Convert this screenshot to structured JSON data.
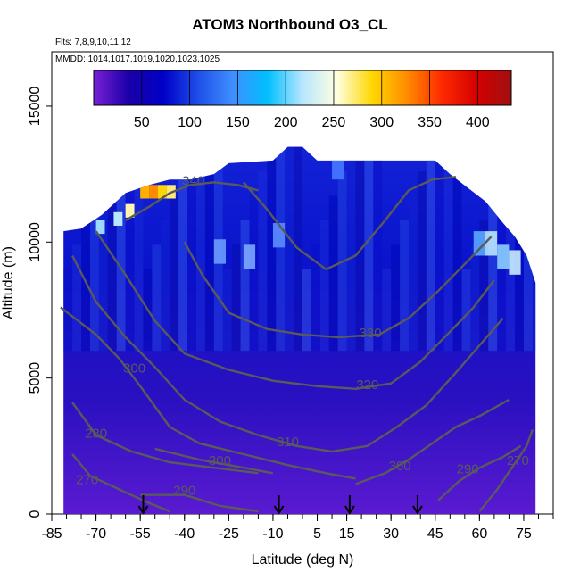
{
  "chart_data": {
    "type": "heatmap",
    "title": "ATOM3 Northbound O3_CL",
    "flights_label": "Flts: 7,8,9,10,11,12",
    "dates_label": "MMDD: 1014,1017,1019,1020,1023,1025",
    "xlabel": "Latitude (deg N)",
    "ylabel": "Altitude (m)",
    "xlim": [
      -85,
      85
    ],
    "ylim": [
      0,
      17000
    ],
    "x_ticks": [
      -85,
      -70,
      -55,
      -40,
      -25,
      -10,
      5,
      15,
      30,
      45,
      60,
      75
    ],
    "x_minor_step": 5,
    "y_ticks": [
      0,
      5000,
      10000,
      15000
    ],
    "colorbar": {
      "min": 0,
      "max": 435,
      "ticks": [
        50,
        100,
        150,
        200,
        250,
        300,
        350,
        400
      ],
      "colors": [
        "#7a1fd6",
        "#1a00a8",
        "#0000c8",
        "#1f4fe8",
        "#3f8fff",
        "#00bfff",
        "#b8e6ff",
        "#ffffe0",
        "#ffd700",
        "#ff8c00",
        "#ff2a00",
        "#d40000",
        "#a01010"
      ]
    },
    "profile_markers_lat": [
      -54,
      -8,
      16,
      39
    ],
    "contours": [
      {
        "label": "270",
        "label_at": [
          -73,
          1100
        ],
        "points": [
          [
            -78,
            2200
          ],
          [
            -72,
            1400
          ],
          [
            -62,
            900
          ],
          [
            -52,
            400
          ],
          [
            -45,
            100
          ]
        ]
      },
      {
        "label": "270",
        "label_at": [
          73,
          1800
        ],
        "points": [
          [
            60,
            100
          ],
          [
            66,
            900
          ],
          [
            71,
            1700
          ],
          [
            76,
            2500
          ],
          [
            78,
            3100
          ]
        ]
      },
      {
        "label": "280",
        "label_at": [
          -70,
          2800
        ],
        "points": [
          [
            -78,
            4100
          ],
          [
            -70,
            2900
          ],
          [
            -58,
            2300
          ],
          [
            -45,
            1900
          ],
          [
            -30,
            1700
          ],
          [
            -15,
            1500
          ]
        ]
      },
      {
        "label": "290",
        "label_at": [
          -40,
          700
        ],
        "points": [
          [
            -55,
            700
          ],
          [
            -40,
            700
          ],
          [
            -28,
            300
          ],
          [
            -15,
            100
          ]
        ]
      },
      {
        "label": "290",
        "label_at": [
          56,
          1500
        ],
        "points": [
          [
            46,
            500
          ],
          [
            53,
            1200
          ],
          [
            60,
            1700
          ],
          [
            68,
            2100
          ],
          [
            74,
            2500
          ]
        ]
      },
      {
        "label": "300",
        "label_at": [
          -57,
          5200
        ],
        "points": [
          [
            -82,
            7600
          ],
          [
            -70,
            6600
          ],
          [
            -62,
            5700
          ],
          [
            -55,
            4700
          ],
          [
            -45,
            3200
          ],
          [
            -35,
            2600
          ],
          [
            -20,
            2200
          ],
          [
            -5,
            1800
          ],
          [
            8,
            1500
          ],
          [
            18,
            1300
          ]
        ]
      },
      {
        "label": "300",
        "label_at": [
          -28,
          1800
        ],
        "points": [
          [
            -50,
            2400
          ],
          [
            -35,
            2000
          ],
          [
            -20,
            1700
          ],
          [
            -10,
            1500
          ]
        ]
      },
      {
        "label": "300",
        "label_at": [
          33,
          1600
        ],
        "points": [
          [
            18,
            1100
          ],
          [
            28,
            1500
          ],
          [
            36,
            2000
          ],
          [
            44,
            2600
          ],
          [
            52,
            3200
          ],
          [
            60,
            3600
          ],
          [
            70,
            4200
          ]
        ]
      },
      {
        "label": "310",
        "label_at": [
          -5,
          2500
        ],
        "points": [
          [
            -78,
            9500
          ],
          [
            -70,
            7800
          ],
          [
            -60,
            6500
          ],
          [
            -50,
            5400
          ],
          [
            -40,
            4200
          ],
          [
            -28,
            3400
          ],
          [
            -15,
            2900
          ],
          [
            -2,
            2500
          ],
          [
            10,
            2300
          ],
          [
            22,
            2500
          ],
          [
            32,
            3200
          ],
          [
            42,
            4000
          ],
          [
            52,
            5200
          ],
          [
            60,
            6200
          ],
          [
            68,
            7200
          ]
        ]
      },
      {
        "label": "320",
        "label_at": [
          22,
          4600
        ],
        "points": [
          [
            -70,
            10400
          ],
          [
            -60,
            8800
          ],
          [
            -50,
            7100
          ],
          [
            -40,
            5900
          ],
          [
            -25,
            5300
          ],
          [
            -10,
            4900
          ],
          [
            5,
            4700
          ],
          [
            18,
            4600
          ],
          [
            30,
            4800
          ],
          [
            40,
            5600
          ],
          [
            50,
            6700
          ],
          [
            58,
            7600
          ],
          [
            65,
            8600
          ]
        ]
      },
      {
        "label": "330",
        "label_at": [
          23,
          6500
        ],
        "points": [
          [
            -40,
            10000
          ],
          [
            -34,
            8800
          ],
          [
            -25,
            7400
          ],
          [
            -12,
            6800
          ],
          [
            0,
            6600
          ],
          [
            12,
            6500
          ],
          [
            26,
            6600
          ],
          [
            36,
            7200
          ],
          [
            46,
            8200
          ],
          [
            56,
            9300
          ],
          [
            64,
            10200
          ]
        ]
      },
      {
        "label": "340",
        "label_at": [
          -37,
          12100
        ],
        "points": [
          [
            -60,
            10800
          ],
          [
            -52,
            11300
          ],
          [
            -45,
            11800
          ],
          [
            -38,
            12100
          ],
          [
            -30,
            12200
          ],
          [
            -22,
            12100
          ],
          [
            -15,
            11900
          ]
        ]
      },
      {
        "label": "",
        "label_at": [
          0,
          0
        ],
        "points": [
          [
            -20,
            12200
          ],
          [
            -12,
            11200
          ],
          [
            -2,
            9800
          ],
          [
            8,
            9000
          ],
          [
            18,
            9500
          ],
          [
            28,
            10800
          ],
          [
            36,
            11900
          ],
          [
            44,
            12300
          ],
          [
            52,
            12400
          ]
        ]
      }
    ]
  }
}
